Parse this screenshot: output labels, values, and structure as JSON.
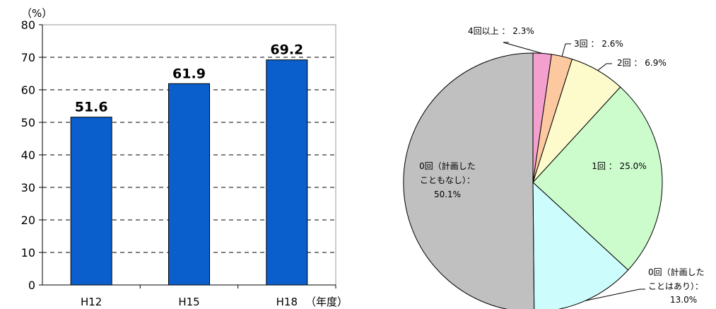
{
  "chart_data": [
    {
      "type": "bar",
      "categories": [
        "H12",
        "H15",
        "H18"
      ],
      "values": [
        51.6,
        61.9,
        69.2
      ],
      "data_labels": [
        "51.6",
        "61.9",
        "69.2"
      ],
      "ylabel": "（%）",
      "xlabel": "（年度）",
      "ylim": [
        0,
        80
      ],
      "yticks": [
        "0",
        "10",
        "20",
        "30",
        "40",
        "50",
        "60",
        "70",
        "80"
      ],
      "grid": "dashed horizontal",
      "bar_color": "#0a5fcc"
    },
    {
      "type": "pie",
      "slices": [
        {
          "label": "4回以上 ： 2.3%",
          "value": 2.3,
          "color": "#f4a0cf"
        },
        {
          "label": "3回 ： 2.6%",
          "value": 2.6,
          "color": "#fcc89f"
        },
        {
          "label": "2回 ： 6.9%",
          "value": 6.9,
          "color": "#fdfbcc"
        },
        {
          "label": "1回 ： 25.0%",
          "value": 25.0,
          "color": "#ccfbcc"
        },
        {
          "label_lines": [
            "0回（計画した",
            "ことはあり）：",
            "13.0%"
          ],
          "value": 13.0,
          "color": "#ccfcfc"
        },
        {
          "label_lines": [
            "0回（計画した",
            "こともなし）：",
            "50.1%"
          ],
          "value": 50.1,
          "color": "#c0c0c0"
        }
      ]
    }
  ]
}
